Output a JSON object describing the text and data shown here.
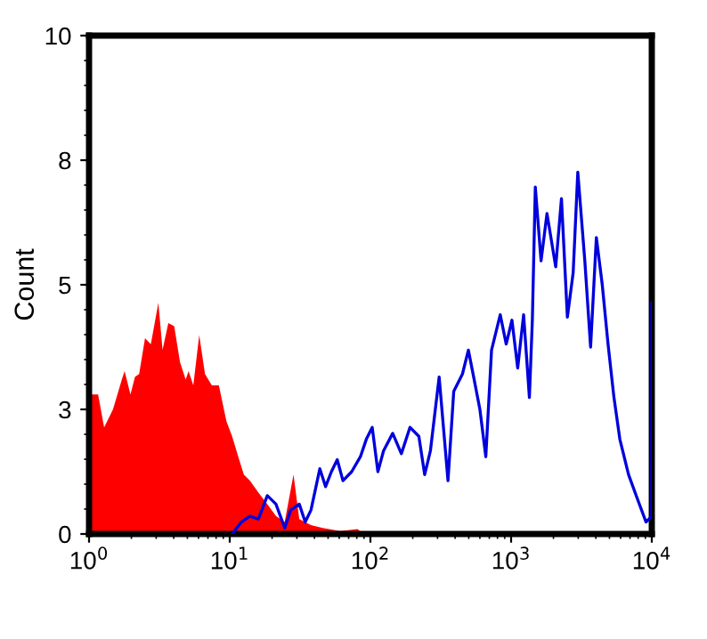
{
  "chart_data": {
    "type": "area",
    "ylabel": "Count",
    "log": "x",
    "grid": false,
    "xlim": [
      1,
      10000
    ],
    "xticks": [
      {
        "value": 1,
        "label": "10$^{0}$"
      },
      {
        "value": 10,
        "label": "10$^{1}$"
      },
      {
        "value": 100,
        "label": "10$^{2}$"
      },
      {
        "value": 1000,
        "label": "10$^{3}$"
      },
      {
        "value": 10000,
        "label": "10$^{4}$"
      }
    ],
    "ylim": [
      0,
      10
    ],
    "yticks": [
      0,
      {
        "value": 2.5,
        "label": "3"
      },
      5,
      {
        "value": 7.5,
        "label": "8"
      },
      10
    ],
    "series": [
      {
        "color": "#ff0000",
        "x": [
          1,
          1.16,
          1.28,
          1.48,
          1.71,
          1.79,
          1.97,
          2.12,
          2.27,
          2.5,
          2.75,
          3.11,
          3.33,
          3.66,
          4.03,
          4.43,
          4.86,
          5.1,
          5.51,
          6.07,
          6.67,
          7.46,
          8.37,
          9.48,
          10.4,
          11.5,
          12.6,
          13.9,
          16,
          18.5,
          21.3,
          24.6,
          28.4,
          31.2,
          37.8,
          45.8,
          61,
          81,
          89
        ],
        "values": [
          2.8,
          2.8,
          2.14,
          2.5,
          3.1,
          3.27,
          2.8,
          3.15,
          3.21,
          3.93,
          3.81,
          4.64,
          3.69,
          4.23,
          4.17,
          3.45,
          3.1,
          3.27,
          2.98,
          3.99,
          3.21,
          2.98,
          2.98,
          2.26,
          1.96,
          1.55,
          1.19,
          1.07,
          0.83,
          0.6,
          0.36,
          0.24,
          1.19,
          0.3,
          0.18,
          0.12,
          0.06,
          0.1,
          0
        ]
      },
      {
        "type": "line",
        "color": "#0000dd",
        "x": [
          10.4,
          12.1,
          13.9,
          16,
          18.5,
          21.3,
          24.6,
          27.1,
          31.2,
          34.4,
          37.8,
          43.7,
          48,
          52.8,
          58.1,
          63.8,
          73.6,
          84.9,
          93.5,
          103,
          113,
          124,
          144,
          166,
          191,
          221,
          243,
          267,
          308,
          356,
          391,
          451,
          497,
          546,
          600,
          661,
          726,
          837,
          923,
          1014,
          1114,
          1227,
          1349,
          1416,
          1486,
          1633,
          1799,
          2075,
          2280,
          2512,
          2761,
          2979,
          3342,
          3673,
          4036,
          4446,
          4887,
          5383,
          5929,
          6839,
          7889,
          9099,
          9990,
          10000
        ],
        "values": [
          0,
          0.24,
          0.36,
          0.3,
          0.77,
          0.6,
          0.12,
          0.48,
          0.6,
          0.24,
          0.48,
          1.31,
          0.95,
          1.25,
          1.49,
          1.07,
          1.25,
          1.55,
          1.9,
          2.14,
          1.25,
          1.67,
          2.02,
          1.61,
          2.14,
          1.96,
          1.19,
          1.67,
          3.15,
          1.07,
          2.86,
          3.21,
          3.69,
          3.1,
          2.5,
          1.55,
          3.69,
          4.4,
          3.81,
          4.29,
          3.33,
          4.4,
          2.74,
          4.29,
          6.96,
          5.48,
          6.43,
          5.36,
          6.73,
          4.35,
          5.24,
          7.26,
          5.48,
          3.75,
          5.95,
          5,
          3.81,
          2.74,
          1.9,
          1.19,
          0.71,
          0.24,
          0.36,
          4.64
        ]
      }
    ]
  }
}
